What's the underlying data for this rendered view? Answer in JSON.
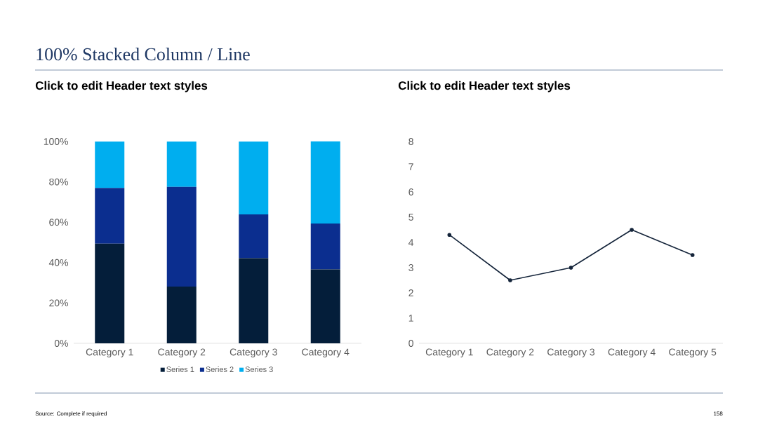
{
  "chart_data": [
    {
      "type": "bar",
      "title": "Click to edit Header text styles",
      "stacked": true,
      "categories": [
        "Category 1",
        "Category 2",
        "Category 3",
        "Category 4"
      ],
      "series": [
        {
          "name": "Series 1",
          "color": "#041e3a",
          "values": [
            49.4,
            28.1,
            42.2,
            36.6
          ]
        },
        {
          "name": "Series 2",
          "color": "#0b2e8f",
          "values": [
            27.6,
            49.4,
            21.7,
            22.8
          ]
        },
        {
          "name": "Series 3",
          "color": "#00aeef",
          "values": [
            23.0,
            22.5,
            36.1,
            40.7
          ]
        }
      ],
      "ylim": [
        0,
        100
      ],
      "yticks": [
        {
          "value": 0,
          "label": "0%"
        },
        {
          "value": 20,
          "label": "20%"
        },
        {
          "value": 40,
          "label": "40%"
        },
        {
          "value": 60,
          "label": "60%"
        },
        {
          "value": 80,
          "label": "80%"
        },
        {
          "value": 100,
          "label": "100%"
        }
      ],
      "legend": "bottom",
      "annotations": [
        "100% Stacked Column / Line",
        "Source: Complete if required",
        "158"
      ]
    },
    {
      "type": "line",
      "title": "Click to edit Header text styles",
      "categories": [
        "Category 1",
        "Category 2",
        "Category 3",
        "Category 4",
        "Category 5"
      ],
      "series": [
        {
          "color": "#14243a",
          "values": [
            4.3,
            2.5,
            3,
            4.5,
            3.5
          ]
        }
      ],
      "marker": "circle",
      "ylim": [
        0,
        8
      ],
      "yticks": [
        0,
        1,
        2,
        3,
        4,
        5,
        6,
        7,
        8
      ]
    }
  ]
}
